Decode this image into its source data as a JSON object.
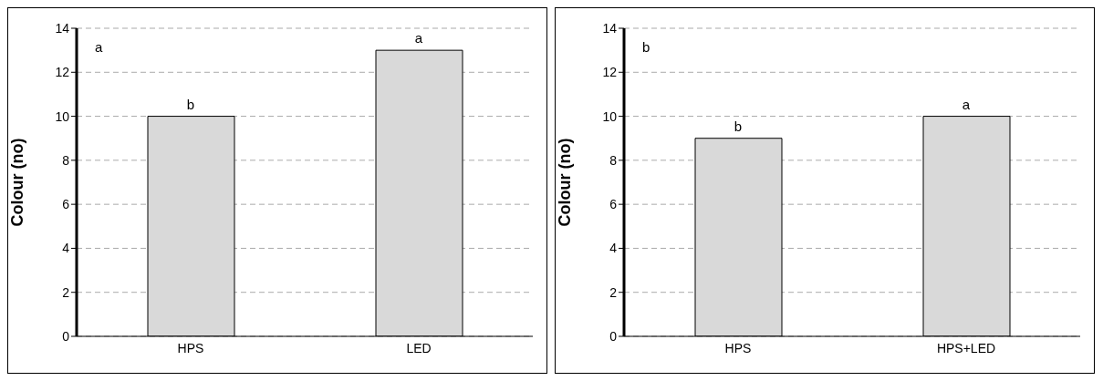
{
  "chart_data": [
    {
      "type": "bar",
      "ylabel": "Colour (no)",
      "categories": [
        "HPS",
        "LED"
      ],
      "values": [
        10,
        13
      ],
      "color": "#d9d9d9",
      "ylim": [
        0,
        14
      ],
      "yticks": [
        0,
        2,
        4,
        6,
        8,
        10,
        12,
        14
      ],
      "grid": "y",
      "annotations": [
        "a",
        {
          "text": "b",
          "x": "HPS",
          "y": 10
        },
        {
          "text": "a",
          "x": "LED",
          "y": 13
        }
      ]
    },
    {
      "type": "bar",
      "ylabel": "Colour (no)",
      "categories": [
        "HPS",
        "HPS+LED"
      ],
      "values": [
        9,
        10
      ],
      "color": "#d9d9d9",
      "ylim": [
        0,
        14
      ],
      "yticks": [
        0,
        2,
        4,
        6,
        8,
        10,
        12,
        14
      ],
      "grid": "y",
      "annotations": [
        "b",
        {
          "text": "b",
          "x": "HPS",
          "y": 9
        },
        {
          "text": "a",
          "x": "HPS+LED",
          "y": 10
        }
      ]
    }
  ]
}
